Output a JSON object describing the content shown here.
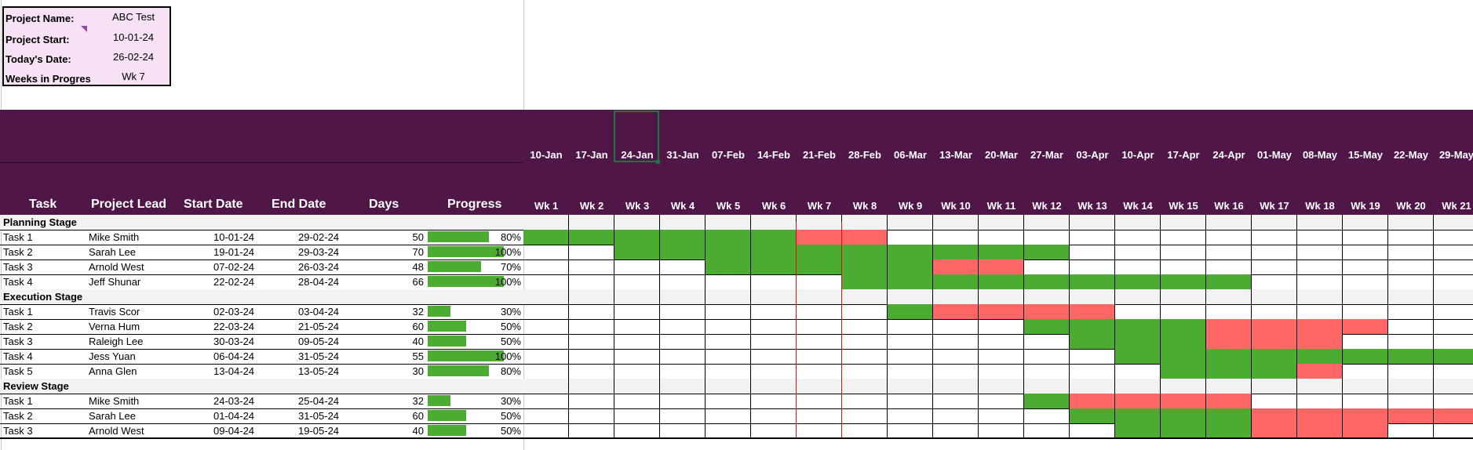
{
  "project_info": {
    "name_label": "Project Name:",
    "name_value": "ABC Test",
    "start_label": "Project Start:",
    "start_value": "10-01-24",
    "today_label": "Today's Date:",
    "today_value": "26-02-24",
    "weeks_label": "Weeks in Progress",
    "weeks_value": "Wk 7"
  },
  "columns": {
    "task": "Task",
    "lead": "Project Lead",
    "start": "Start Date",
    "end": "End Date",
    "days": "Days",
    "progress": "Progress"
  },
  "timeline": {
    "dates": [
      "10-Jan",
      "17-Jan",
      "24-Jan",
      "31-Jan",
      "07-Feb",
      "14-Feb",
      "21-Feb",
      "28-Feb",
      "06-Mar",
      "13-Mar",
      "20-Mar",
      "27-Mar",
      "03-Apr",
      "10-Apr",
      "17-Apr",
      "24-Apr",
      "01-May",
      "08-May",
      "15-May",
      "22-May",
      "29-May"
    ],
    "weeks": [
      "Wk 1",
      "Wk 2",
      "Wk 3",
      "Wk 4",
      "Wk 5",
      "Wk 6",
      "Wk 7",
      "Wk 8",
      "Wk 9",
      "Wk 10",
      "Wk 11",
      "Wk 12",
      "Wk 13",
      "Wk 14",
      "Wk 15",
      "Wk 16",
      "Wk 17",
      "Wk 18",
      "Wk 19",
      "Wk 20",
      "Wk 21"
    ]
  },
  "colors": {
    "header": "#4f1647",
    "done": "#4cac32",
    "late": "#ff6666",
    "info_box": "#f7e1f5",
    "today_line": "#e01010"
  },
  "stages": [
    {
      "name": "Planning Stage",
      "tasks": [
        {
          "task": "Task 1",
          "lead": "Mike Smith",
          "start": "10-01-24",
          "end": "29-02-24",
          "days": "50",
          "progress": 0.8,
          "progress_label": "80%",
          "weeks": [
            "d",
            "d",
            "d",
            "d",
            "d",
            "d",
            "l",
            "l",
            "",
            "",
            "",
            "",
            "",
            "",
            "",
            "",
            "",
            "",
            "",
            "",
            ""
          ]
        },
        {
          "task": "Task 2",
          "lead": "Sarah Lee",
          "start": "19-01-24",
          "end": "29-03-24",
          "days": "70",
          "progress": 1.0,
          "progress_label": "100%",
          "weeks": [
            "",
            "",
            "d",
            "d",
            "d",
            "d",
            "d",
            "d",
            "d",
            "d",
            "d",
            "d",
            "",
            "",
            "",
            "",
            "",
            "",
            "",
            "",
            ""
          ]
        },
        {
          "task": "Task 3",
          "lead": "Arnold West",
          "start": "07-02-24",
          "end": "26-03-24",
          "days": "48",
          "progress": 0.7,
          "progress_label": "70%",
          "weeks": [
            "",
            "",
            "",
            "",
            "d",
            "d",
            "d",
            "d",
            "d",
            "l",
            "l",
            "",
            "",
            "",
            "",
            "",
            "",
            "",
            "",
            "",
            ""
          ]
        },
        {
          "task": "Task 4",
          "lead": "Jeff Shunar",
          "start": "22-02-24",
          "end": "28-04-24",
          "days": "66",
          "progress": 1.0,
          "progress_label": "100%",
          "weeks": [
            "",
            "",
            "",
            "",
            "",
            "",
            "",
            "d",
            "d",
            "d",
            "d",
            "d",
            "d",
            "d",
            "d",
            "d",
            "",
            "",
            "",
            "",
            ""
          ]
        }
      ]
    },
    {
      "name": "Execution Stage",
      "tasks": [
        {
          "task": "Task 1",
          "lead": "Travis Scor",
          "start": "02-03-24",
          "end": "03-04-24",
          "days": "32",
          "progress": 0.3,
          "progress_label": "30%",
          "weeks": [
            "",
            "",
            "",
            "",
            "",
            "",
            "",
            "",
            "d",
            "l",
            "l",
            "l",
            "l",
            "",
            "",
            "",
            "",
            "",
            "",
            "",
            ""
          ]
        },
        {
          "task": "Task 2",
          "lead": "Verna Hum",
          "start": "22-03-24",
          "end": "21-05-24",
          "days": "60",
          "progress": 0.5,
          "progress_label": "50%",
          "weeks": [
            "",
            "",
            "",
            "",
            "",
            "",
            "",
            "",
            "",
            "",
            "",
            "d",
            "d",
            "d",
            "d",
            "l",
            "l",
            "l",
            "l",
            "",
            ""
          ]
        },
        {
          "task": "Task 3",
          "lead": "Raleigh Lee",
          "start": "30-03-24",
          "end": "09-05-24",
          "days": "40",
          "progress": 0.5,
          "progress_label": "50%",
          "weeks": [
            "",
            "",
            "",
            "",
            "",
            "",
            "",
            "",
            "",
            "",
            "",
            "",
            "d",
            "d",
            "d",
            "l",
            "l",
            "l",
            "",
            "",
            ""
          ]
        },
        {
          "task": "Task 4",
          "lead": "Jess Yuan",
          "start": "06-04-24",
          "end": "31-05-24",
          "days": "55",
          "progress": 1.0,
          "progress_label": "100%",
          "weeks": [
            "",
            "",
            "",
            "",
            "",
            "",
            "",
            "",
            "",
            "",
            "",
            "",
            "",
            "d",
            "d",
            "d",
            "d",
            "d",
            "d",
            "d",
            "d"
          ]
        },
        {
          "task": "Task 5",
          "lead": "Anna Glen",
          "start": "13-04-24",
          "end": "13-05-24",
          "days": "30",
          "progress": 0.8,
          "progress_label": "80%",
          "weeks": [
            "",
            "",
            "",
            "",
            "",
            "",
            "",
            "",
            "",
            "",
            "",
            "",
            "",
            "",
            "d",
            "d",
            "d",
            "l",
            "",
            "",
            ""
          ]
        }
      ]
    },
    {
      "name": "Review Stage",
      "tasks": [
        {
          "task": "Task 1",
          "lead": "Mike Smith",
          "start": "24-03-24",
          "end": "25-04-24",
          "days": "32",
          "progress": 0.3,
          "progress_label": "30%",
          "weeks": [
            "",
            "",
            "",
            "",
            "",
            "",
            "",
            "",
            "",
            "",
            "",
            "d",
            "l",
            "l",
            "l",
            "l",
            "",
            "",
            "",
            "",
            ""
          ]
        },
        {
          "task": "Task 2",
          "lead": "Sarah Lee",
          "start": "01-04-24",
          "end": "31-05-24",
          "days": "60",
          "progress": 0.5,
          "progress_label": "50%",
          "weeks": [
            "",
            "",
            "",
            "",
            "",
            "",
            "",
            "",
            "",
            "",
            "",
            "",
            "d",
            "d",
            "d",
            "d",
            "l",
            "l",
            "l",
            "l",
            "l"
          ]
        },
        {
          "task": "Task 3",
          "lead": "Arnold West",
          "start": "09-04-24",
          "end": "19-05-24",
          "days": "40",
          "progress": 0.5,
          "progress_label": "50%",
          "weeks": [
            "",
            "",
            "",
            "",
            "",
            "",
            "",
            "",
            "",
            "",
            "",
            "",
            "",
            "d",
            "d",
            "d",
            "l",
            "l",
            "l",
            "",
            ""
          ]
        }
      ]
    }
  ]
}
